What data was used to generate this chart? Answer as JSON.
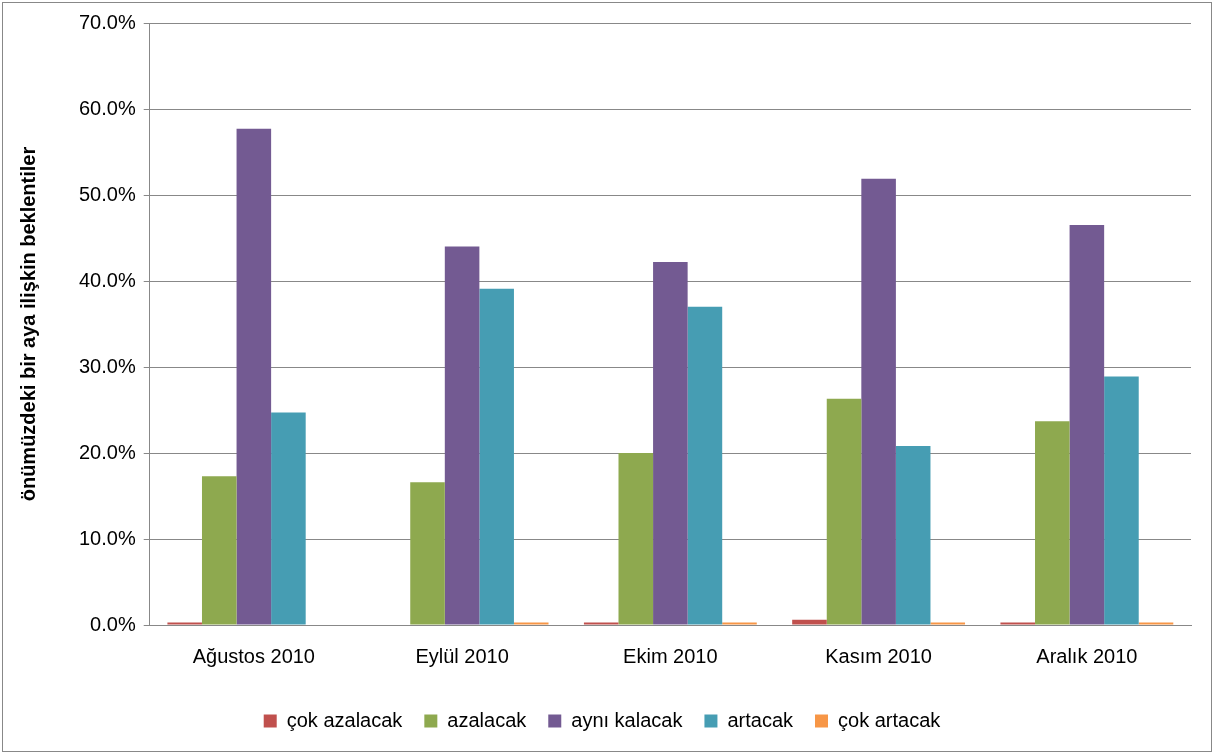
{
  "chart_data": {
    "type": "bar",
    "ylabel": "önümüzdeki bir aya ilişkin beklentiler",
    "categories": [
      "Ağustos 2010",
      "Eylül 2010",
      "Ekim 2010",
      "Kasım 2010",
      "Aralık 2010"
    ],
    "series": [
      {
        "name": "çok azalacak",
        "color": "#c0504d",
        "values": [
          0.3,
          0,
          0.3,
          0.6,
          0.3
        ]
      },
      {
        "name": "azalacak",
        "color": "#8ea94f",
        "values": [
          17.3,
          16.6,
          20.0,
          26.3,
          23.7
        ]
      },
      {
        "name": "aynı kalacak",
        "color": "#735a92",
        "values": [
          57.7,
          44.0,
          42.2,
          51.9,
          46.5
        ]
      },
      {
        "name": "artacak",
        "color": "#469db3",
        "values": [
          24.7,
          39.1,
          37.0,
          20.8,
          28.9
        ]
      },
      {
        "name": "çok artacak",
        "color": "#f79646",
        "values": [
          0,
          0.3,
          0.3,
          0.3,
          0.3
        ]
      }
    ],
    "ylim": [
      0,
      70
    ],
    "yticks": [
      {
        "value": 0,
        "label": "0.0%"
      },
      {
        "value": 10,
        "label": "10.0%"
      },
      {
        "value": 20,
        "label": "20.0%"
      },
      {
        "value": 30,
        "label": "30.0%"
      },
      {
        "value": 40,
        "label": "40.0%"
      },
      {
        "value": 50,
        "label": "50.0%"
      },
      {
        "value": 60,
        "label": "60.0%"
      },
      {
        "value": 70,
        "label": "70.0%"
      }
    ],
    "grid": "y",
    "legend": "bottom"
  }
}
